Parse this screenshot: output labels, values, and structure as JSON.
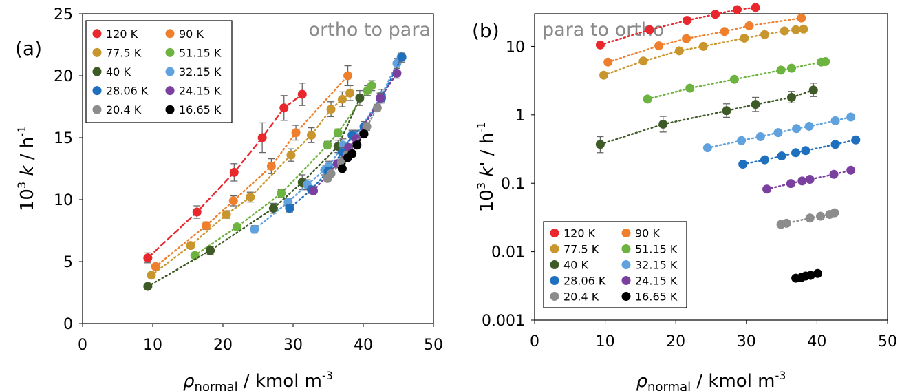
{
  "colors": {
    "120 K": "#e8282d",
    "90 K": "#ef7f2c",
    "77.5 K": "#c9962e",
    "51.15 K": "#6db33f",
    "40 K": "#3e5a26",
    "32.15 K": "#5fa2dd",
    "28.06 K": "#1f6fbf",
    "24.15 K": "#7b3fa0",
    "20.4 K": "#8c8c8c",
    "16.65 K": "#000000"
  },
  "chart_data": [
    {
      "type": "scatter",
      "panel_label": "(a)",
      "title": "ortho to para",
      "xlabel_main": "ρ",
      "xlabel_sub": "normal",
      "xlabel_rest": " / kmol m",
      "xlabel_sup": "-3",
      "ylabel_pre": "10",
      "ylabel_pre_sup": "3",
      "ylabel_var": "k",
      "ylabel_unit": " / h",
      "ylabel_unit_sup": "-1",
      "xlim": [
        0,
        50
      ],
      "ylim": [
        0,
        25
      ],
      "xticks": [
        "0",
        "10",
        "20",
        "30",
        "40",
        "50"
      ],
      "yticks": [
        "0",
        "5",
        "10",
        "15",
        "20",
        "25"
      ],
      "legend_placement": "top-left",
      "legend": [
        "120 K",
        "90 K",
        "77.5 K",
        "51.15 K",
        "40 K",
        "32.15 K",
        "28.06 K",
        "24.15 K",
        "20.4 K",
        "16.65 K"
      ],
      "series": [
        {
          "name": "120 K",
          "x": [
            9.3,
            16.3,
            21.6,
            25.6,
            28.7,
            31.3
          ],
          "y": [
            5.3,
            9.0,
            12.2,
            15.0,
            17.4,
            18.5
          ],
          "err": [
            0.4,
            0.5,
            0.7,
            1.2,
            1.0,
            0.9
          ],
          "fit": "dashed"
        },
        {
          "name": "90 K",
          "x": [
            10.4,
            17.6,
            21.5,
            26.9,
            30.4,
            37.8
          ],
          "y": [
            4.6,
            7.9,
            9.9,
            12.7,
            15.4,
            20.0
          ],
          "err": [
            0.2,
            0.3,
            0.4,
            0.6,
            0.6,
            0.8
          ],
          "fit": "dotted"
        },
        {
          "name": "77.5 K",
          "x": [
            9.8,
            15.4,
            20.5,
            23.9,
            29.7,
            32.6,
            35.4,
            37.0,
            38.1
          ],
          "y": [
            3.9,
            6.3,
            8.8,
            10.2,
            13.6,
            15.2,
            17.3,
            18.1,
            18.6
          ],
          "err": [
            0.2,
            0.2,
            0.3,
            0.4,
            0.5,
            0.6,
            0.6,
            0.6,
            0.6
          ],
          "fit": "dotted"
        },
        {
          "name": "51.15 K",
          "x": [
            16.0,
            22.0,
            28.3,
            34.9,
            36.4,
            40.6,
            41.2
          ],
          "y": [
            5.5,
            7.8,
            10.5,
            14.4,
            15.4,
            18.8,
            19.2
          ],
          "err": [
            0.2,
            0.2,
            0.3,
            0.3,
            0.3,
            0.4,
            0.4
          ],
          "fit": "dotted"
        },
        {
          "name": "40 K",
          "x": [
            9.3,
            18.2,
            27.2,
            31.3,
            36.4,
            39.5
          ],
          "y": [
            3.0,
            5.9,
            9.3,
            11.4,
            14.3,
            18.2
          ],
          "err": [
            0.1,
            0.3,
            0.4,
            0.6,
            0.5,
            0.6
          ],
          "fit": "dotted"
        },
        {
          "name": "32.15 K",
          "x": [
            24.5,
            29.3,
            32.0,
            34.5,
            35.1,
            37.1,
            38.9,
            42.6,
            44.8,
            45.4
          ],
          "y": [
            7.6,
            9.8,
            11.2,
            12.4,
            12.7,
            14.4,
            15.1,
            18.4,
            21.0,
            21.5
          ],
          "err": [
            0.3,
            0.3,
            0.4,
            0.4,
            0.4,
            0.5,
            0.5,
            0.5,
            0.4,
            0.3
          ],
          "fit": "dotted"
        },
        {
          "name": "28.06 K",
          "x": [
            29.5,
            32.6,
            35.0,
            37.0,
            38.4,
            40.1,
            42.6,
            45.5
          ],
          "y": [
            9.3,
            10.8,
            12.3,
            13.8,
            15.2,
            15.9,
            18.2,
            21.5
          ],
          "err": [
            0.3,
            0.3,
            0.3,
            0.4,
            0.4,
            0.4,
            0.4,
            0.4
          ],
          "fit": "dotted"
        },
        {
          "name": "24.15 K",
          "x": [
            32.9,
            36.3,
            37.9,
            39.0,
            42.4,
            44.8
          ],
          "y": [
            10.7,
            12.9,
            14.2,
            14.9,
            18.2,
            20.2
          ],
          "err": [
            0.2,
            0.3,
            0.3,
            0.3,
            0.4,
            0.4
          ],
          "fit": "dotted"
        },
        {
          "name": "20.4 K",
          "x": [
            34.9,
            35.4,
            36.9,
            37.7,
            40.5,
            42.0
          ],
          "y": [
            11.7,
            12.1,
            13.0,
            13.6,
            15.9,
            17.4
          ],
          "err": [
            0.2,
            0.2,
            0.2,
            0.3,
            0.3,
            0.3
          ],
          "fit": "dotted"
        },
        {
          "name": "16.65 K",
          "x": [
            37.0,
            37.8,
            38.4,
            39.1,
            40.1
          ],
          "y": [
            12.5,
            13.4,
            13.7,
            14.4,
            15.3
          ],
          "err": [
            0.2,
            0.2,
            0.2,
            0.2,
            0.2
          ],
          "fit": "dotted"
        }
      ]
    },
    {
      "type": "scatter",
      "panel_label": "(b)",
      "title": "para to ortho",
      "xlabel_main": "ρ",
      "xlabel_sub": "normal",
      "xlabel_rest": " / kmol m",
      "xlabel_sup": "-3",
      "ylabel_pre": "10",
      "ylabel_pre_sup": "3",
      "ylabel_var": "k'",
      "ylabel_unit": " / h",
      "ylabel_unit_sup": "-1",
      "xlim": [
        0,
        50
      ],
      "ylim": [
        0.001,
        30
      ],
      "log_y": true,
      "xticks": [
        "0",
        "10",
        "20",
        "30",
        "40",
        "50"
      ],
      "yticks": [
        "0.001",
        "0.01",
        "0.1",
        "1",
        "10"
      ],
      "legend_placement": "bottom-left",
      "legend": [
        "120 K",
        "90 K",
        "77.5 K",
        "51.15 K",
        "40 K",
        "32.15 K",
        "28.06 K",
        "24.15 K",
        "20.4 K",
        "16.65 K"
      ],
      "series": [
        {
          "name": "120 K",
          "x": [
            9.3,
            16.3,
            21.6,
            25.6,
            28.7,
            31.3
          ],
          "y": [
            10.5,
            17.5,
            24.0,
            29.5,
            34.5,
            37.0
          ],
          "fit": "dotted"
        },
        {
          "name": "90 K",
          "x": [
            10.4,
            17.6,
            21.5,
            26.9,
            30.4,
            37.8
          ],
          "y": [
            5.9,
            10.2,
            13.0,
            16.5,
            20.0,
            26.0
          ],
          "fit": "dotted"
        },
        {
          "name": "77.5 K",
          "x": [
            9.8,
            15.4,
            20.5,
            23.9,
            29.7,
            32.6,
            35.4,
            37.0,
            38.1
          ],
          "y": [
            3.8,
            6.1,
            8.6,
            10.0,
            13.2,
            14.9,
            16.8,
            17.5,
            17.9
          ],
          "fit": "dotted"
        },
        {
          "name": "51.15 K",
          "x": [
            16.0,
            22.0,
            28.3,
            34.9,
            36.4,
            40.6,
            41.2
          ],
          "y": [
            1.7,
            2.45,
            3.3,
            4.5,
            4.8,
            5.9,
            6.0
          ],
          "fit": "dotted"
        },
        {
          "name": "40 K",
          "x": [
            9.3,
            18.2,
            27.2,
            31.3,
            36.4,
            39.5
          ],
          "y": [
            0.37,
            0.73,
            1.15,
            1.42,
            1.8,
            2.3
          ],
          "err_lo": [
            0.28,
            0.56,
            0.92,
            1.12,
            1.5,
            1.85
          ],
          "err_hi": [
            0.48,
            0.95,
            1.45,
            1.8,
            2.2,
            2.9
          ],
          "fit": "dotted"
        },
        {
          "name": "32.15 K",
          "x": [
            24.5,
            29.3,
            32.0,
            34.5,
            37.1,
            38.9,
            42.6,
            44.8
          ],
          "y": [
            0.33,
            0.42,
            0.48,
            0.55,
            0.63,
            0.68,
            0.82,
            0.93
          ],
          "fit": "dotted"
        },
        {
          "name": "28.06 K",
          "x": [
            29.5,
            32.6,
            35.0,
            37.0,
            38.4,
            42.6,
            45.5
          ],
          "y": [
            0.19,
            0.22,
            0.25,
            0.28,
            0.3,
            0.37,
            0.43
          ],
          "fit": "dotted"
        },
        {
          "name": "24.15 K",
          "x": [
            32.9,
            36.3,
            37.9,
            39.0,
            42.4,
            44.8
          ],
          "y": [
            0.082,
            0.099,
            0.108,
            0.114,
            0.135,
            0.155
          ],
          "fit": "dotted"
        },
        {
          "name": "20.4 K",
          "x": [
            34.9,
            35.7,
            39.0,
            40.5,
            41.8,
            42.5
          ],
          "y": [
            0.025,
            0.026,
            0.031,
            0.033,
            0.035,
            0.037
          ],
          "fit": "dotted"
        },
        {
          "name": "16.65 K",
          "x": [
            37.0,
            37.8,
            38.4,
            39.1,
            40.1
          ],
          "y": [
            0.0041,
            0.0042,
            0.0044,
            0.0045,
            0.0048
          ],
          "fit": "dotted"
        }
      ]
    }
  ]
}
